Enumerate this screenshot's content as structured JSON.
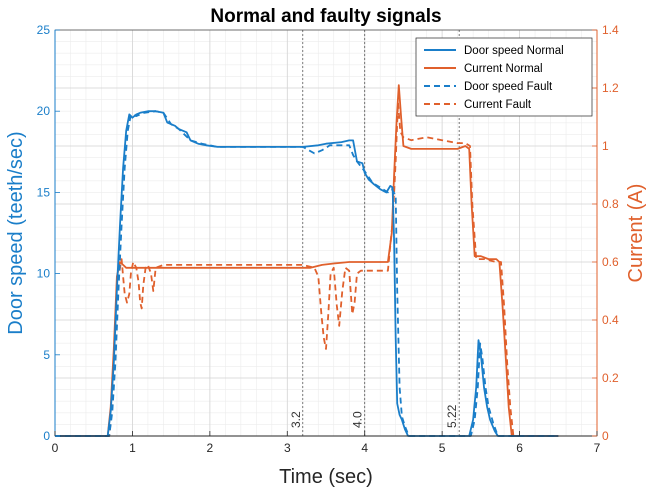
{
  "chart_data": {
    "type": "line",
    "title": "Normal and faulty signals",
    "xlabel": "Time (sec)",
    "ylabel_left": "Door speed (teeth/sec)",
    "ylabel_right": "Current (A)",
    "xlim": [
      0,
      7
    ],
    "ylim_left": [
      0,
      25
    ],
    "ylim_right": [
      0,
      1.4
    ],
    "x_ticks": [
      "0",
      "1",
      "2",
      "3",
      "4",
      "5",
      "6",
      "7"
    ],
    "y_left_ticks": [
      "0",
      "5",
      "10",
      "15",
      "20",
      "25"
    ],
    "y_right_ticks": [
      "0",
      "0.2",
      "0.4",
      "0.6",
      "0.8",
      "1",
      "1.2",
      "1.4"
    ],
    "grid": true,
    "minor_grid": true,
    "legend_position": "top-right",
    "colors": {
      "speed": "#1a7ec9",
      "current": "#e0602c"
    },
    "vertical_markers": [
      {
        "x": 3.2,
        "label": "3.2"
      },
      {
        "x": 4.0,
        "label": "4.0"
      },
      {
        "x": 5.22,
        "label": "5.22"
      }
    ],
    "series": [
      {
        "name": "Door speed Normal",
        "axis": "left",
        "style": "solid",
        "points": [
          [
            0,
            0
          ],
          [
            0.68,
            0
          ],
          [
            0.72,
            1.5
          ],
          [
            0.76,
            4.5
          ],
          [
            0.8,
            9
          ],
          [
            0.84,
            13
          ],
          [
            0.88,
            16.5
          ],
          [
            0.92,
            18.8
          ],
          [
            0.96,
            19.8
          ],
          [
            1.0,
            19.6
          ],
          [
            1.05,
            19.8
          ],
          [
            1.1,
            19.9
          ],
          [
            1.2,
            20.0
          ],
          [
            1.3,
            20.0
          ],
          [
            1.4,
            19.9
          ],
          [
            1.45,
            19.3
          ],
          [
            1.55,
            19.1
          ],
          [
            1.6,
            18.9
          ],
          [
            1.7,
            18.7
          ],
          [
            1.75,
            18.2
          ],
          [
            1.85,
            18.0
          ],
          [
            1.95,
            17.9
          ],
          [
            2.1,
            17.8
          ],
          [
            2.5,
            17.8
          ],
          [
            2.9,
            17.8
          ],
          [
            3.2,
            17.8
          ],
          [
            3.4,
            17.9
          ],
          [
            3.5,
            18.0
          ],
          [
            3.7,
            18.1
          ],
          [
            3.8,
            18.2
          ],
          [
            3.85,
            18.2
          ],
          [
            3.9,
            16.9
          ],
          [
            3.97,
            16.8
          ],
          [
            4.0,
            16.2
          ],
          [
            4.05,
            15.8
          ],
          [
            4.12,
            15.5
          ],
          [
            4.2,
            15.2
          ],
          [
            4.28,
            15.0
          ],
          [
            4.33,
            15.4
          ],
          [
            4.36,
            15.3
          ],
          [
            4.38,
            12
          ],
          [
            4.4,
            6
          ],
          [
            4.42,
            2
          ],
          [
            4.45,
            1.3
          ],
          [
            4.48,
            1.0
          ],
          [
            4.52,
            0.4
          ],
          [
            4.56,
            0
          ],
          [
            5.35,
            0
          ],
          [
            5.4,
            1
          ],
          [
            5.44,
            3
          ],
          [
            5.47,
            5.9
          ],
          [
            5.5,
            5.0
          ],
          [
            5.54,
            3
          ],
          [
            5.58,
            1.8
          ],
          [
            5.62,
            1
          ],
          [
            5.68,
            0.3
          ],
          [
            5.72,
            0
          ],
          [
            6.5,
            0
          ]
        ]
      },
      {
        "name": "Current Normal",
        "axis": "right",
        "style": "solid",
        "points": [
          [
            0,
            0
          ],
          [
            0.68,
            0
          ],
          [
            0.72,
            0.1
          ],
          [
            0.76,
            0.3
          ],
          [
            0.8,
            0.55
          ],
          [
            0.84,
            0.6
          ],
          [
            0.88,
            0.59
          ],
          [
            0.92,
            0.58
          ],
          [
            0.96,
            0.58
          ],
          [
            1.0,
            0.58
          ],
          [
            1.1,
            0.58
          ],
          [
            1.2,
            0.58
          ],
          [
            1.3,
            0.58
          ],
          [
            1.5,
            0.58
          ],
          [
            2.0,
            0.58
          ],
          [
            2.5,
            0.58
          ],
          [
            3.0,
            0.58
          ],
          [
            3.3,
            0.58
          ],
          [
            3.45,
            0.59
          ],
          [
            3.6,
            0.595
          ],
          [
            3.8,
            0.6
          ],
          [
            4.0,
            0.6
          ],
          [
            4.2,
            0.6
          ],
          [
            4.3,
            0.6
          ],
          [
            4.35,
            0.7
          ],
          [
            4.38,
            0.9
          ],
          [
            4.41,
            1.08
          ],
          [
            4.44,
            1.21
          ],
          [
            4.47,
            1.1
          ],
          [
            4.5,
            1.0
          ],
          [
            4.6,
            0.99
          ],
          [
            4.8,
            0.99
          ],
          [
            5.0,
            0.99
          ],
          [
            5.2,
            0.99
          ],
          [
            5.3,
            1.0
          ],
          [
            5.35,
            0.99
          ],
          [
            5.38,
            0.8
          ],
          [
            5.42,
            0.62
          ],
          [
            5.5,
            0.62
          ],
          [
            5.6,
            0.61
          ],
          [
            5.7,
            0.61
          ],
          [
            5.74,
            0.6
          ],
          [
            5.78,
            0.45
          ],
          [
            5.82,
            0.28
          ],
          [
            5.86,
            0.1
          ],
          [
            5.9,
            0
          ],
          [
            6.5,
            0
          ]
        ]
      },
      {
        "name": "Door speed Fault",
        "axis": "left",
        "style": "dashed",
        "points": [
          [
            0,
            0
          ],
          [
            0.7,
            0
          ],
          [
            0.74,
            1.5
          ],
          [
            0.78,
            4.5
          ],
          [
            0.82,
            9
          ],
          [
            0.86,
            13
          ],
          [
            0.9,
            16.5
          ],
          [
            0.94,
            18.8
          ],
          [
            0.98,
            19.8
          ],
          [
            1.05,
            19.7
          ],
          [
            1.15,
            19.9
          ],
          [
            1.3,
            20.0
          ],
          [
            1.4,
            19.9
          ],
          [
            1.5,
            19.2
          ],
          [
            1.6,
            18.9
          ],
          [
            1.75,
            18.2
          ],
          [
            1.9,
            18.0
          ],
          [
            2.1,
            17.8
          ],
          [
            2.5,
            17.8
          ],
          [
            3.0,
            17.8
          ],
          [
            3.2,
            17.8
          ],
          [
            3.35,
            17.4
          ],
          [
            3.45,
            17.6
          ],
          [
            3.55,
            17.9
          ],
          [
            3.7,
            17.9
          ],
          [
            3.8,
            17.9
          ],
          [
            3.85,
            17.3
          ],
          [
            3.9,
            16.9
          ],
          [
            4.0,
            16.3
          ],
          [
            4.1,
            15.6
          ],
          [
            4.2,
            15.3
          ],
          [
            4.3,
            15.0
          ],
          [
            4.35,
            15.2
          ],
          [
            4.4,
            14.8
          ],
          [
            4.42,
            9
          ],
          [
            4.45,
            3
          ],
          [
            4.48,
            1.2
          ],
          [
            4.52,
            0.6
          ],
          [
            4.57,
            0
          ],
          [
            5.37,
            0
          ],
          [
            5.42,
            1
          ],
          [
            5.46,
            3
          ],
          [
            5.49,
            5.7
          ],
          [
            5.52,
            4.8
          ],
          [
            5.56,
            3
          ],
          [
            5.6,
            1.8
          ],
          [
            5.66,
            0.8
          ],
          [
            5.72,
            0
          ],
          [
            6.5,
            0
          ]
        ]
      },
      {
        "name": "Current Fault",
        "axis": "right",
        "style": "dashed",
        "points": [
          [
            0,
            0
          ],
          [
            0.7,
            0
          ],
          [
            0.74,
            0.1
          ],
          [
            0.78,
            0.3
          ],
          [
            0.82,
            0.55
          ],
          [
            0.86,
            0.61
          ],
          [
            0.88,
            0.55
          ],
          [
            0.9,
            0.49
          ],
          [
            0.93,
            0.46
          ],
          [
            0.96,
            0.49
          ],
          [
            0.98,
            0.56
          ],
          [
            1.01,
            0.6
          ],
          [
            1.05,
            0.58
          ],
          [
            1.08,
            0.53
          ],
          [
            1.1,
            0.46
          ],
          [
            1.12,
            0.44
          ],
          [
            1.14,
            0.52
          ],
          [
            1.17,
            0.58
          ],
          [
            1.2,
            0.59
          ],
          [
            1.24,
            0.56
          ],
          [
            1.27,
            0.5
          ],
          [
            1.3,
            0.58
          ],
          [
            1.4,
            0.59
          ],
          [
            1.6,
            0.59
          ],
          [
            2.0,
            0.59
          ],
          [
            2.5,
            0.59
          ],
          [
            3.0,
            0.59
          ],
          [
            3.2,
            0.59
          ],
          [
            3.35,
            0.58
          ],
          [
            3.4,
            0.55
          ],
          [
            3.44,
            0.42
          ],
          [
            3.47,
            0.34
          ],
          [
            3.5,
            0.3
          ],
          [
            3.53,
            0.42
          ],
          [
            3.56,
            0.56
          ],
          [
            3.6,
            0.58
          ],
          [
            3.64,
            0.45
          ],
          [
            3.67,
            0.38
          ],
          [
            3.71,
            0.5
          ],
          [
            3.75,
            0.58
          ],
          [
            3.8,
            0.57
          ],
          [
            3.84,
            0.42
          ],
          [
            3.87,
            0.46
          ],
          [
            3.9,
            0.56
          ],
          [
            3.95,
            0.57
          ],
          [
            4.0,
            0.57
          ],
          [
            4.2,
            0.57
          ],
          [
            4.3,
            0.57
          ],
          [
            4.36,
            0.74
          ],
          [
            4.4,
            0.95
          ],
          [
            4.43,
            1.15
          ],
          [
            4.46,
            1.05
          ],
          [
            4.5,
            1.03
          ],
          [
            4.6,
            1.02
          ],
          [
            4.8,
            1.03
          ],
          [
            5.0,
            1.02
          ],
          [
            5.2,
            1.01
          ],
          [
            5.3,
            1.01
          ],
          [
            5.36,
            1.0
          ],
          [
            5.39,
            0.8
          ],
          [
            5.44,
            0.61
          ],
          [
            5.55,
            0.61
          ],
          [
            5.7,
            0.6
          ],
          [
            5.76,
            0.6
          ],
          [
            5.8,
            0.45
          ],
          [
            5.84,
            0.25
          ],
          [
            5.88,
            0.1
          ],
          [
            5.92,
            0
          ],
          [
            6.5,
            0
          ]
        ]
      }
    ]
  }
}
